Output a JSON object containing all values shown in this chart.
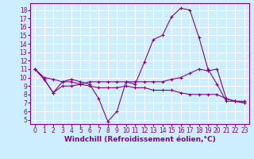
{
  "background_color": "#cceeff",
  "line_color": "#880088",
  "grid_color": "#ffffff",
  "xlabel": "Windchill (Refroidissement éolien,°C)",
  "xlabel_fontsize": 6.5,
  "tick_fontsize": 5.5,
  "xlim": [
    -0.5,
    23.5
  ],
  "ylim": [
    4.5,
    18.8
  ],
  "yticks": [
    5,
    6,
    7,
    8,
    9,
    10,
    11,
    12,
    13,
    14,
    15,
    16,
    17,
    18
  ],
  "xticks": [
    0,
    1,
    2,
    3,
    4,
    5,
    6,
    7,
    8,
    9,
    10,
    11,
    12,
    13,
    14,
    15,
    16,
    17,
    18,
    19,
    20,
    21,
    22,
    23
  ],
  "series": [
    {
      "x": [
        0,
        1,
        2,
        3,
        4,
        5,
        6,
        7,
        8,
        9,
        10,
        11,
        12,
        13,
        14,
        15,
        16,
        17,
        18,
        19,
        20,
        21,
        22,
        23
      ],
      "y": [
        11,
        10,
        9.8,
        9.5,
        9.8,
        9.5,
        9.2,
        7.5,
        4.8,
        6.0,
        9.5,
        9.2,
        11.8,
        14.5,
        15.0,
        17.2,
        18.2,
        18.0,
        14.8,
        11.0,
        9.2,
        7.2,
        7.2,
        7.2
      ]
    },
    {
      "x": [
        0,
        1,
        2,
        3,
        4,
        5,
        6,
        7,
        8,
        9,
        10,
        11,
        12,
        13,
        14,
        15,
        16,
        17,
        18,
        19,
        20,
        21,
        22,
        23
      ],
      "y": [
        11,
        9.8,
        8.2,
        9.5,
        9.5,
        9.2,
        9.5,
        9.5,
        9.5,
        9.5,
        9.5,
        9.5,
        9.5,
        9.5,
        9.5,
        9.8,
        10.0,
        10.5,
        11.0,
        10.8,
        11.0,
        7.5,
        7.2,
        7.0
      ]
    },
    {
      "x": [
        0,
        1,
        2,
        3,
        4,
        5,
        6,
        7,
        8,
        9,
        10,
        11,
        12,
        13,
        14,
        15,
        16,
        17,
        18,
        19,
        20,
        21,
        22,
        23
      ],
      "y": [
        11,
        9.8,
        8.2,
        9.0,
        9.0,
        9.2,
        9.0,
        8.8,
        8.8,
        8.8,
        9.0,
        8.8,
        8.8,
        8.5,
        8.5,
        8.5,
        8.2,
        8.0,
        8.0,
        8.0,
        8.0,
        7.5,
        7.2,
        7.0
      ]
    }
  ]
}
